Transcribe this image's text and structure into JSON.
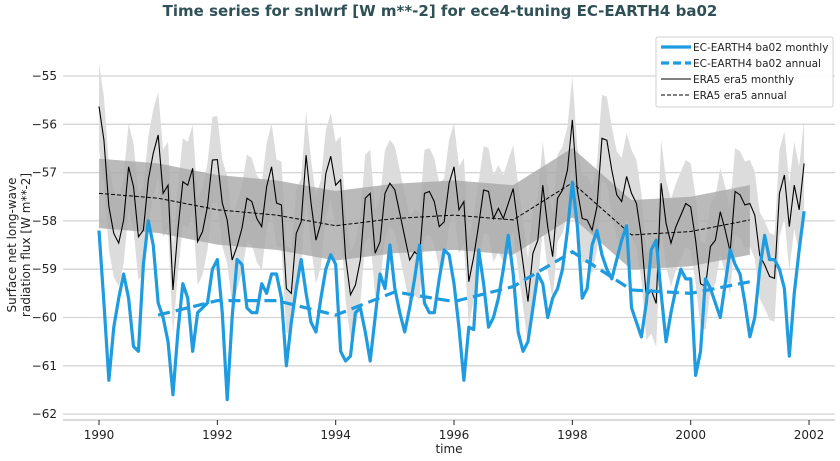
{
  "chart_data": {
    "type": "line",
    "title": "Time series for snlwrf [W m**-2] for ece4-tuning EC-EARTH4 ba02",
    "xlabel": "time",
    "ylabel": [
      "Surface net long-wave",
      "radiation flux [W m**-2]"
    ],
    "xlim": [
      1989.35,
      2002.45
    ],
    "ylim": [
      -62.1,
      -54.1
    ],
    "xticks": [
      1990,
      1992,
      1994,
      1996,
      1998,
      2000,
      2002
    ],
    "yticks": [
      -55,
      -56,
      -57,
      -58,
      -59,
      -60,
      -61,
      -62
    ],
    "ytick_labels": [
      "−55",
      "−56",
      "−57",
      "−58",
      "−59",
      "−60",
      "−61",
      "−62"
    ],
    "grid": "horizontal",
    "legend_position": "top-right",
    "monthly_start": "1990-01",
    "annual_years": [
      1990,
      1991,
      1992,
      1993,
      1994,
      1995,
      1996,
      1997,
      1998,
      1999,
      2000,
      2001
    ],
    "colors": {
      "model": "#1f9be0",
      "era5": "#000000",
      "band_light": "#dcdcdc",
      "band_dark": "#a9a9a9",
      "title": "#2f5156"
    },
    "series": [
      {
        "name": "EC-EARTH4 ba02 monthly",
        "style": "solid-thick",
        "values": [
          -58.2,
          -59.7,
          -61.3,
          -60.2,
          -59.6,
          -59.1,
          -59.6,
          -60.6,
          -60.7,
          -58.9,
          -58.0,
          -58.5,
          -59.7,
          -60.0,
          -60.5,
          -61.6,
          -60.3,
          -59.3,
          -59.6,
          -60.7,
          -59.9,
          -59.8,
          -59.7,
          -59.0,
          -58.8,
          -59.9,
          -61.7,
          -60.0,
          -58.8,
          -58.9,
          -59.8,
          -59.9,
          -59.9,
          -59.3,
          -59.5,
          -59.1,
          -59.1,
          -59.6,
          -61.0,
          -60.1,
          -59.4,
          -58.8,
          -59.5,
          -60.1,
          -60.3,
          -59.6,
          -59.0,
          -58.7,
          -58.9,
          -60.7,
          -60.9,
          -60.8,
          -59.9,
          -59.8,
          -60.3,
          -60.9,
          -60.0,
          -59.1,
          -59.4,
          -58.5,
          -59.4,
          -59.9,
          -60.3,
          -59.8,
          -59.2,
          -58.5,
          -59.7,
          -59.9,
          -59.9,
          -59.2,
          -58.6,
          -58.7,
          -59.3,
          -60.2,
          -61.3,
          -60.2,
          -60.25,
          -58.6,
          -59.3,
          -60.2,
          -60.0,
          -59.6,
          -59.0,
          -58.3,
          -59.1,
          -60.3,
          -60.7,
          -60.5,
          -59.8,
          -59.1,
          -59.3,
          -60.0,
          -59.6,
          -59.4,
          -59.0,
          -58.2,
          -57.2,
          -58.1,
          -59.6,
          -59.4,
          -58.5,
          -58.2,
          -58.7,
          -59.0,
          -59.2,
          -58.8,
          -58.4,
          -58.1,
          -59.8,
          -60.1,
          -60.4,
          -59.7,
          -58.6,
          -58.4,
          -59.5,
          -60.5,
          -59.9,
          -59.4,
          -59.0,
          -59.2,
          -59.2,
          -61.2,
          -60.7,
          -59.2,
          -59.4,
          -59.7,
          -60.0,
          -59.3,
          -58.6,
          -58.9,
          -59.1,
          -59.7,
          -60.4,
          -60.0,
          -59.0,
          -58.3,
          -58.8,
          -58.8,
          -59.0,
          -59.4,
          -60.8,
          -59.5,
          -58.6,
          -57.8
        ]
      },
      {
        "name": "EC-EARTH4 ba02 annual",
        "style": "dashed-thick",
        "values": [
          null,
          -59.95,
          -59.65,
          -59.65,
          -59.95,
          -59.47,
          -59.67,
          -59.36,
          -58.64,
          -59.43,
          -59.5,
          -59.26
        ]
      },
      {
        "name": "ERA5 era5 monthly",
        "style": "solid-thin",
        "spread": 0.9,
        "values": [
          -55.63,
          -56.33,
          -57.7,
          -58.26,
          -58.46,
          -57.98,
          -56.88,
          -57.29,
          -58.33,
          -58.19,
          -57.15,
          -56.6,
          -56.22,
          -57.43,
          -57.26,
          -59.43,
          -58.19,
          -57.19,
          -57.26,
          -56.91,
          -58.43,
          -58.22,
          -57.7,
          -56.74,
          -56.73,
          -57.63,
          -57.98,
          -58.81,
          -58.53,
          -58.15,
          -57.53,
          -57.6,
          -57.95,
          -58.12,
          -57.29,
          -56.88,
          -57.63,
          -57.67,
          -59.4,
          -59.5,
          -58.26,
          -58.02,
          -56.64,
          -57.63,
          -58.4,
          -58.05,
          -57.02,
          -56.66,
          -57.26,
          -57.15,
          -58.74,
          -59.53,
          -59.33,
          -58.81,
          -57.53,
          -57.43,
          -58.67,
          -58.43,
          -57.43,
          -57.22,
          -57.36,
          -57.84,
          -58.33,
          -58.81,
          -58.64,
          -58.74,
          -57.43,
          -57.39,
          -57.6,
          -58.12,
          -58.02,
          -57.22,
          -56.88,
          -57.77,
          -57.6,
          -59.26,
          -58.74,
          -58.08,
          -57.36,
          -57.39,
          -57.95,
          -57.74,
          -57.95,
          -57.64,
          -57.33,
          -58.12,
          -58.88,
          -59.67,
          -58.67,
          -58.4,
          -57.26,
          -58.12,
          -58.74,
          -57.53,
          -57.36,
          -56.95,
          -55.91,
          -57.36,
          -57.95,
          -57.98,
          -58.19,
          -57.7,
          -56.29,
          -56.33,
          -56.95,
          -57.46,
          -57.6,
          -57.08,
          -57.43,
          -57.64,
          -58.33,
          -59.57,
          -59.43,
          -59.71,
          -57.22,
          -58.05,
          -58.46,
          -58.12,
          -57.88,
          -57.64,
          -57.71,
          -58.4,
          -59.3,
          -59.36,
          -58.53,
          -58.4,
          -57.81,
          -58.19,
          -58.64,
          -57.39,
          -57.46,
          -57.67,
          -57.64,
          -57.88,
          -58.71,
          -58.91,
          -59.15,
          -59.19,
          -57.43,
          -57.05,
          -58.12,
          -57.26,
          -57.77,
          -56.81
        ]
      },
      {
        "name": "ERA5 era5 annual",
        "style": "dashed-thin",
        "spread": 0.72,
        "values": [
          -57.43,
          -57.53,
          -57.77,
          -57.88,
          -58.1,
          -57.95,
          -57.88,
          -57.98,
          -57.21,
          -58.29,
          -58.22,
          -57.98
        ]
      }
    ]
  }
}
